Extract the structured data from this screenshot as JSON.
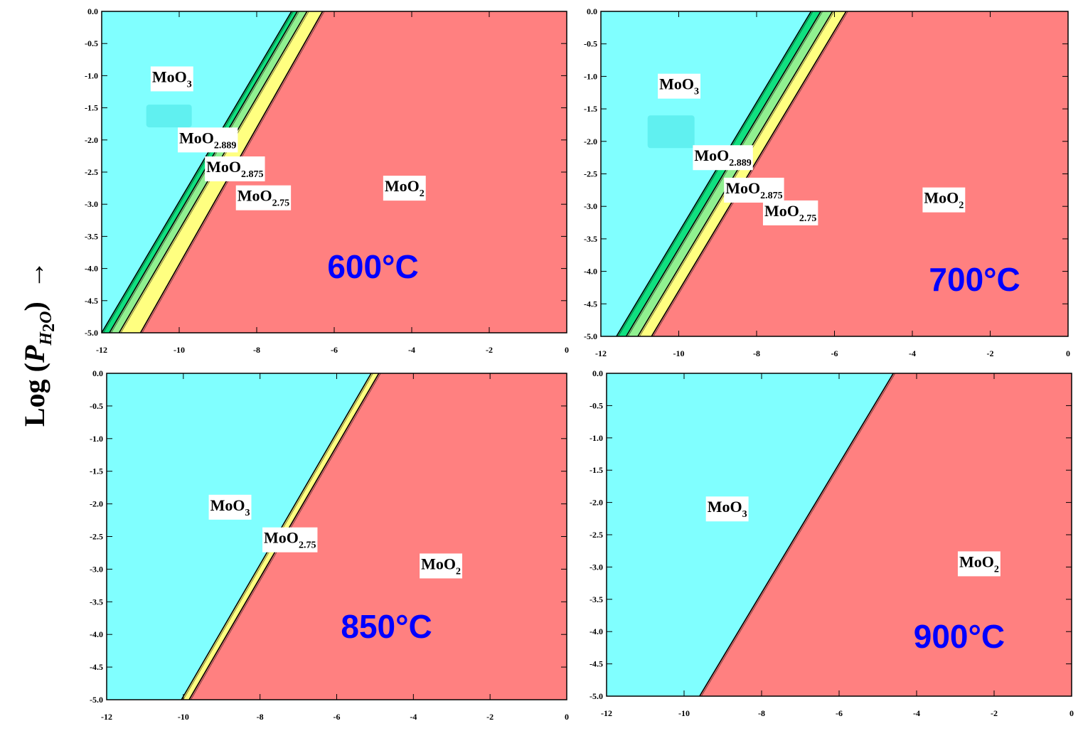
{
  "colors": {
    "MoO3": "#80FFFF",
    "MoO2.889": "#10E080",
    "MoO2.875": "#90F090",
    "MoO2.75": "#FFFF80",
    "MoO2": "#FF8080",
    "temperature_text": "#0000FF",
    "inner_block": "#60F0F0"
  },
  "y_axis_label": {
    "text": "Log (",
    "symbol": "P",
    "subscript": "H",
    "subscript2": "2",
    "subscript3": "O",
    "close": ")",
    "arrow": "→"
  },
  "chart_data": [
    {
      "type": "area",
      "title": "600°C",
      "xlabel": "",
      "ylabel": "Log (P_H2O)",
      "xlim": [
        -12,
        0
      ],
      "ylim": [
        -5.0,
        0.0
      ],
      "x_ticks": [
        "-12",
        "-10",
        "-8",
        "-6",
        "-4",
        "-2",
        "0"
      ],
      "y_ticks": [
        "0.0",
        "-0.5",
        "-1.0",
        "-1.5",
        "-2.0",
        "-2.5",
        "-3.0",
        "-3.5",
        "-4.0",
        "-4.5",
        "-5.0"
      ],
      "boundaries": [
        {
          "between": [
            "MoO3",
            "MoO2.889"
          ],
          "x_at_y0": -7.1,
          "x_at_y_min5": -12.0
        },
        {
          "between": [
            "MoO2.889",
            "MoO2.875"
          ],
          "x_at_y0": -6.95,
          "x_at_y_min5": -11.8
        },
        {
          "between": [
            "MoO2.875",
            "MoO2.75"
          ],
          "x_at_y0": -6.7,
          "x_at_y_min5": -11.55
        },
        {
          "between": [
            "MoO2.75",
            "MoO2"
          ],
          "x_at_y0": -6.3,
          "x_at_y_min5": -11.0
        }
      ],
      "phases": [
        {
          "name": "MoO3",
          "main": "MoO",
          "sub": "3",
          "x": -10.7,
          "y": -1.1
        },
        {
          "name": "MoO2.889",
          "main": "MoO",
          "sub": "2.889",
          "x": -10.0,
          "y": -2.05
        },
        {
          "name": "MoO2.875",
          "main": "MoO",
          "sub": "2.875",
          "x": -9.3,
          "y": -2.5
        },
        {
          "name": "MoO2.75",
          "main": "MoO",
          "sub": "2.75",
          "x": -8.5,
          "y": -2.95
        },
        {
          "name": "MoO2",
          "main": "MoO",
          "sub": "2",
          "x": -4.7,
          "y": -2.8
        }
      ],
      "annotation": {
        "text": "600°C",
        "x": -5.0,
        "y": -4.15
      }
    },
    {
      "type": "area",
      "title": "700°C",
      "xlabel": "",
      "ylabel": "Log (P_H2O)",
      "xlim": [
        -12,
        0
      ],
      "ylim": [
        -5.0,
        0.0
      ],
      "x_ticks": [
        "-12",
        "-10",
        "-8",
        "-6",
        "-4",
        "-2",
        "0"
      ],
      "y_ticks": [
        "0.0",
        "-0.5",
        "-1.0",
        "-1.5",
        "-2.0",
        "-2.5",
        "-3.0",
        "-3.5",
        "-4.0",
        "-4.5",
        "-5.0"
      ],
      "boundaries": [
        {
          "between": [
            "MoO3",
            "MoO2.889"
          ],
          "x_at_y0": -6.6,
          "x_at_y_min5": -11.6
        },
        {
          "between": [
            "MoO2.889",
            "MoO2.875"
          ],
          "x_at_y0": -6.35,
          "x_at_y_min5": -11.35
        },
        {
          "between": [
            "MoO2.875",
            "MoO2.75"
          ],
          "x_at_y0": -6.05,
          "x_at_y_min5": -11.05
        },
        {
          "between": [
            "MoO2.75",
            "MoO2"
          ],
          "x_at_y0": -5.7,
          "x_at_y_min5": -10.7
        }
      ],
      "phases": [
        {
          "name": "MoO3",
          "main": "MoO",
          "sub": "3",
          "x": -10.5,
          "y": -1.2
        },
        {
          "name": "MoO2.889",
          "main": "MoO",
          "sub": "2.889",
          "x": -9.6,
          "y": -2.3
        },
        {
          "name": "MoO2.875",
          "main": "MoO",
          "sub": "2.875",
          "x": -8.8,
          "y": -2.8
        },
        {
          "name": "MoO2.75",
          "main": "MoO",
          "sub": "2.75",
          "x": -7.8,
          "y": -3.15
        },
        {
          "name": "MoO2",
          "main": "MoO",
          "sub": "2",
          "x": -3.7,
          "y": -2.95
        }
      ],
      "annotation": {
        "text": "700°C",
        "x": -2.4,
        "y": -4.3
      }
    },
    {
      "type": "area",
      "title": "850°C",
      "xlabel": "",
      "ylabel": "Log (P_H2O)",
      "xlim": [
        -12,
        0
      ],
      "ylim": [
        -5.0,
        0.0
      ],
      "x_ticks": [
        "-12",
        "-10",
        "-8",
        "-6",
        "-4",
        "-2",
        "0"
      ],
      "y_ticks": [
        "0.0",
        "-0.5",
        "-1.0",
        "-1.5",
        "-2.0",
        "-2.5",
        "-3.0",
        "-3.5",
        "-4.0",
        "-4.5",
        "-5.0"
      ],
      "boundaries": [
        {
          "between": [
            "MoO3",
            "MoO2.75"
          ],
          "x_at_y0": -5.1,
          "x_at_y_min5": -10.05
        },
        {
          "between": [
            "MoO2.75",
            "MoO2"
          ],
          "x_at_y0": -4.9,
          "x_at_y_min5": -9.85
        }
      ],
      "phases": [
        {
          "name": "MoO3",
          "main": "MoO",
          "sub": "3",
          "x": -9.3,
          "y": -2.1
        },
        {
          "name": "MoO2.75",
          "main": "MoO",
          "sub": "2.75",
          "x": -7.9,
          "y": -2.6
        },
        {
          "name": "MoO2",
          "main": "MoO",
          "sub": "2",
          "x": -3.8,
          "y": -3.0
        }
      ],
      "annotation": {
        "text": "850°C",
        "x": -4.7,
        "y": -4.05
      }
    },
    {
      "type": "area",
      "title": "900°C",
      "xlabel": "",
      "ylabel": "Log (P_H2O)",
      "xlim": [
        -12,
        0
      ],
      "ylim": [
        -5.0,
        0.0
      ],
      "x_ticks": [
        "-12",
        "-10",
        "-8",
        "-6",
        "-4",
        "-2",
        "0"
      ],
      "y_ticks": [
        "0.0",
        "-0.5",
        "-1.0",
        "-1.5",
        "-2.0",
        "-2.5",
        "-3.0",
        "-3.5",
        "-4.0",
        "-4.5",
        "-5.0"
      ],
      "boundaries": [
        {
          "between": [
            "MoO3",
            "MoO2"
          ],
          "x_at_y0": -4.6,
          "x_at_y_min5": -9.6
        }
      ],
      "phases": [
        {
          "name": "MoO3",
          "main": "MoO",
          "sub": "3",
          "x": -9.4,
          "y": -2.15
        },
        {
          "name": "MoO2",
          "main": "MoO",
          "sub": "2",
          "x": -2.9,
          "y": -3.0
        }
      ],
      "annotation": {
        "text": "900°C",
        "x": -2.9,
        "y": -4.25
      }
    }
  ]
}
